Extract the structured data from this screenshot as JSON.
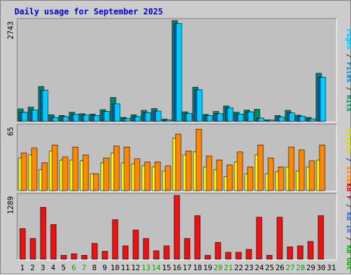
{
  "chart_data": {
    "type": "bar",
    "title": "Daily usage for September 2025",
    "categories": [
      "1",
      "2",
      "3",
      "4",
      "5",
      "6",
      "7",
      "8",
      "9",
      "10",
      "11",
      "12",
      "13",
      "14",
      "15",
      "16",
      "17",
      "18",
      "19",
      "20",
      "21",
      "22",
      "23",
      "24",
      "25",
      "26",
      "27",
      "28",
      "29",
      "30",
      "31"
    ],
    "weekend_days": [
      "6",
      "7",
      "13",
      "14",
      "20",
      "21",
      "27",
      "28"
    ],
    "panels": [
      {
        "max_label": "2743",
        "ylim": [
          0,
          2743
        ],
        "right_label": [
          {
            "text": "Pages",
            "color": "#00ccff"
          },
          {
            "text": " / ",
            "color": "#333333"
          },
          {
            "text": "Files",
            "color": "#0088cc"
          },
          {
            "text": " / ",
            "color": "#333333"
          },
          {
            "text": "Hits",
            "color": "#008855"
          }
        ],
        "series": [
          {
            "name": "Hits",
            "color": "#008866",
            "values": [
              340,
              390,
              950,
              180,
              160,
              250,
              210,
              200,
              320,
              650,
              110,
              180,
              300,
              350,
              60,
              2743,
              260,
              930,
              190,
              270,
              420,
              250,
              310,
              330,
              40,
              160,
              300,
              170,
              110,
              1310,
              0
            ]
          },
          {
            "name": "Files",
            "color": "#0066cc",
            "values": [
              250,
              310,
              850,
              110,
              130,
              200,
              170,
              160,
              270,
              480,
              80,
              130,
              240,
              280,
              40,
              2663,
              220,
              860,
              160,
              210,
              370,
              200,
              260,
              90,
              30,
              120,
              230,
              140,
              70,
              1200,
              0
            ]
          },
          {
            "name": "Pages",
            "color": "#00ccff",
            "values": [
              250,
              310,
              850,
              110,
              130,
              200,
              170,
              160,
              270,
              480,
              80,
              130,
              240,
              280,
              40,
              2663,
              220,
              860,
              160,
              210,
              370,
              200,
              260,
              90,
              30,
              120,
              230,
              140,
              70,
              1200,
              0
            ]
          }
        ]
      },
      {
        "max_label": "65",
        "ylim": [
          0,
          65
        ],
        "right_label": [
          {
            "text": "Visits",
            "color": "#dddd00"
          },
          {
            "text": " / ",
            "color": "#333333"
          },
          {
            "text": "Sites",
            "color": "#ff8800"
          }
        ],
        "series": [
          {
            "name": "Visits",
            "color": "#ffff00",
            "values": [
              33,
              36,
              21,
              40,
              31,
              31,
              30,
              17,
              28,
              38,
              28,
              27,
              25,
              24,
              20,
              53,
              36,
              39,
              24,
              21,
              14,
              29,
              17,
              36,
              17,
              19,
              24,
              20,
              24,
              31,
              0
            ]
          },
          {
            "name": "Sites",
            "color": "#ff8800",
            "values": [
              38,
              43,
              28,
              46,
              34,
              44,
              36,
              17,
              33,
              45,
              44,
              32,
              29,
              29,
              25,
              57,
              40,
              62,
              35,
              31,
              26,
              39,
              24,
              46,
              33,
              24,
              44,
              41,
              30,
              46,
              0
            ]
          }
        ]
      },
      {
        "max_label": "1289",
        "ylim": [
          0,
          1289
        ],
        "right_label": [
          {
            "text": "KB F",
            "color": "#dd0000"
          },
          {
            "text": " / ",
            "color": "#333333"
          },
          {
            "text": "KB In",
            "color": "#3366cc"
          },
          {
            "text": " / ",
            "color": "#333333"
          },
          {
            "text": "KB Out",
            "color": "#00aa00"
          }
        ],
        "series": [
          {
            "name": "KB F",
            "color": "#ee1111",
            "values": [
              620,
              420,
              1050,
              700,
              80,
              110,
              80,
              320,
              160,
              800,
              270,
              590,
              420,
              170,
              270,
              1289,
              420,
              880,
              80,
              340,
              140,
              140,
              200,
              850,
              80,
              850,
              250,
              270,
              360,
              880,
              0
            ]
          }
        ]
      }
    ]
  }
}
